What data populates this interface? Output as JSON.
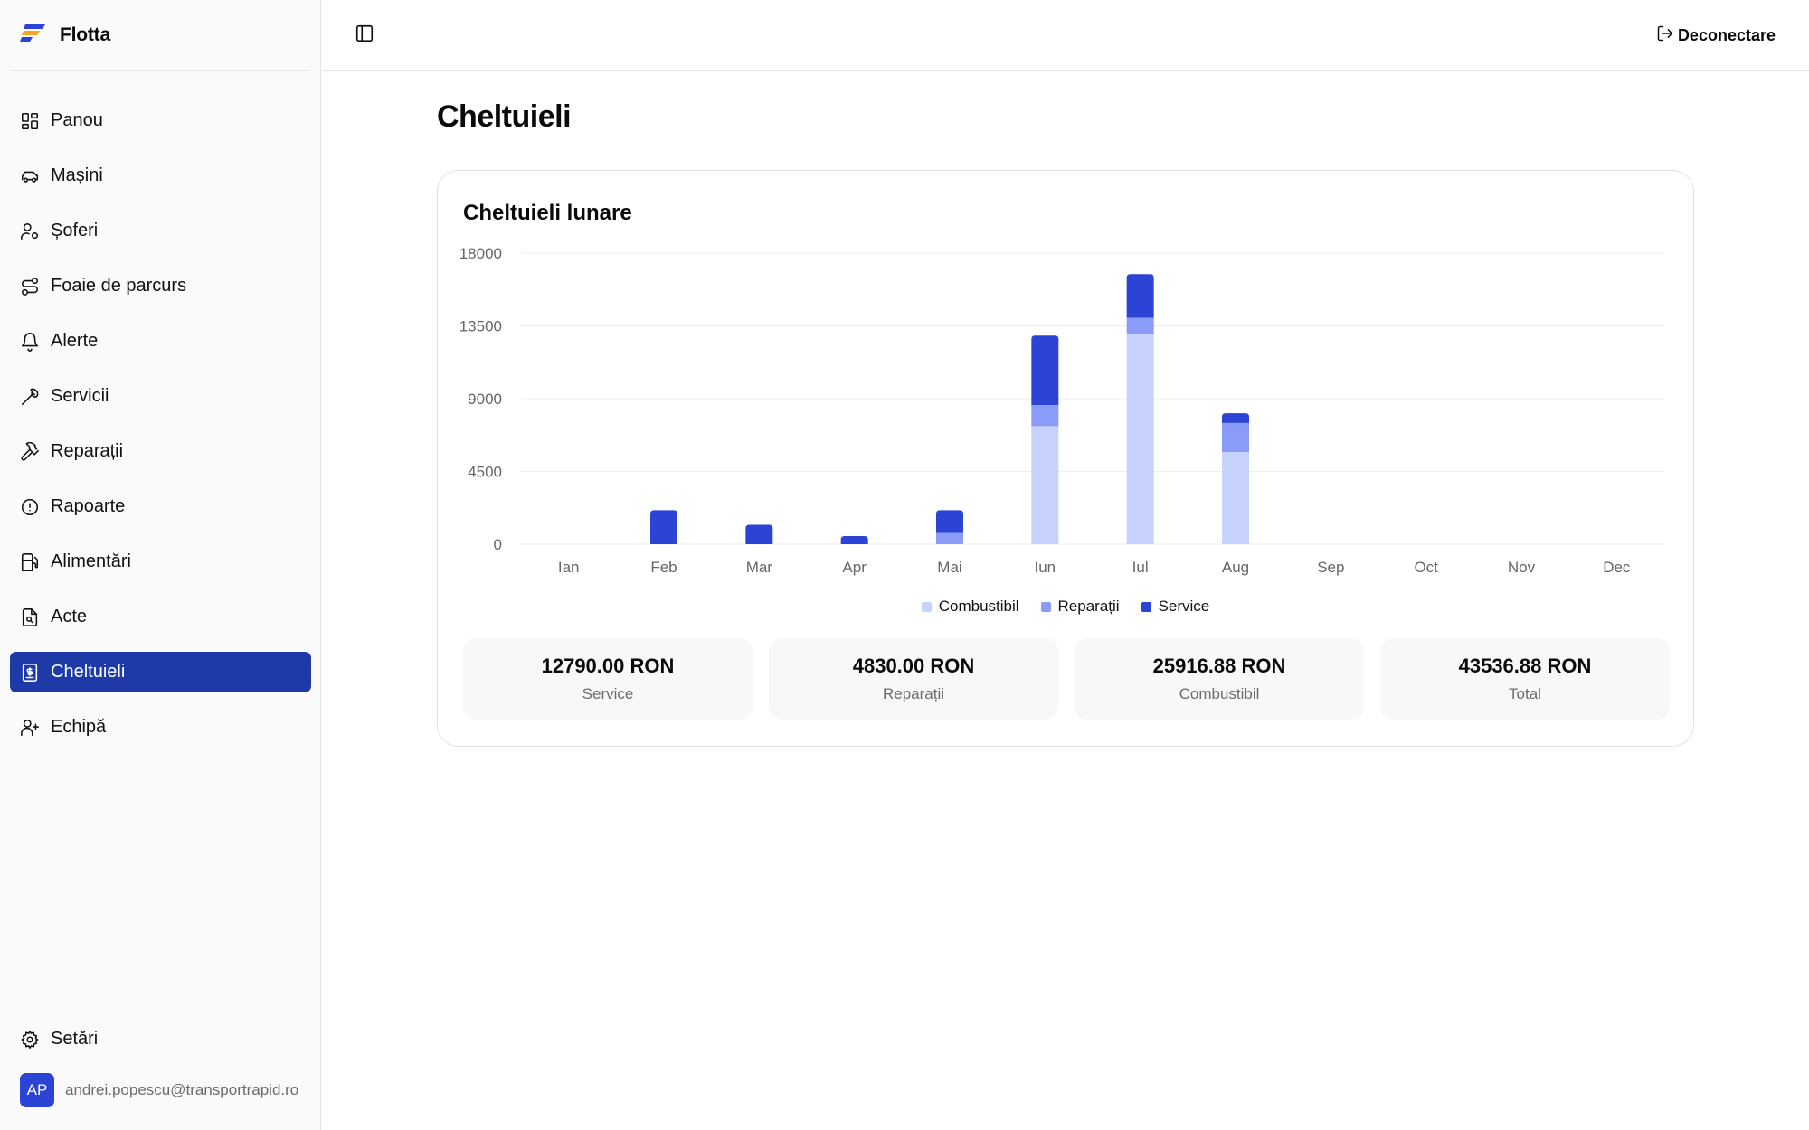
{
  "app": {
    "name": "Flotta"
  },
  "header": {
    "logout_label": "Deconectare"
  },
  "sidebar": {
    "items": [
      {
        "label": "Panou",
        "icon": "dashboard-icon",
        "active": false
      },
      {
        "label": "Mașini",
        "icon": "car-icon",
        "active": false
      },
      {
        "label": "Șoferi",
        "icon": "user-settings-icon",
        "active": false
      },
      {
        "label": "Foaie de parcurs",
        "icon": "route-icon",
        "active": false
      },
      {
        "label": "Alerte",
        "icon": "bell-icon",
        "active": false
      },
      {
        "label": "Servicii",
        "icon": "wrench-icon",
        "active": false
      },
      {
        "label": "Reparații",
        "icon": "hammer-icon",
        "active": false
      },
      {
        "label": "Rapoarte",
        "icon": "alert-circle-icon",
        "active": false
      },
      {
        "label": "Alimentări",
        "icon": "fuel-icon",
        "active": false
      },
      {
        "label": "Acte",
        "icon": "file-search-icon",
        "active": false
      },
      {
        "label": "Cheltuieli",
        "icon": "receipt-icon",
        "active": true
      },
      {
        "label": "Echipă",
        "icon": "user-plus-icon",
        "active": false
      }
    ],
    "settings_label": "Setări",
    "user": {
      "initials": "AP",
      "email": "andrei.popescu@transportrapid.ro"
    }
  },
  "main": {
    "title": "Cheltuieli",
    "card_title": "Cheltuieli lunare",
    "stats": [
      {
        "value": "12790.00 RON",
        "label": "Service"
      },
      {
        "value": "4830.00 RON",
        "label": "Reparații"
      },
      {
        "value": "25916.88 RON",
        "label": "Combustibil"
      },
      {
        "value": "43536.88 RON",
        "label": "Total"
      }
    ]
  },
  "colors": {
    "accent": "#1e3aa8",
    "combustibil": "#c7d2fe",
    "reparatii": "#8b9cf8",
    "service": "#2b44d6"
  },
  "chart_data": {
    "type": "bar",
    "stacked": true,
    "categories": [
      "Ian",
      "Feb",
      "Mar",
      "Apr",
      "Mai",
      "Iun",
      "Iul",
      "Aug",
      "Sep",
      "Oct",
      "Nov",
      "Dec"
    ],
    "y_tick_labels": [
      "0",
      "4500",
      "9000",
      "13500",
      "18000"
    ],
    "ylim": [
      0,
      18000
    ],
    "grid": true,
    "legend": "bottom-center",
    "series": [
      {
        "name": "Combustibil",
        "color": "#c7d2fe",
        "values": [
          0,
          0,
          0,
          0,
          0,
          7300,
          13000,
          5700,
          0,
          0,
          0,
          0
        ]
      },
      {
        "name": "Reparații",
        "color": "#8b9cf8",
        "values": [
          0,
          0,
          0,
          0,
          700,
          1300,
          1000,
          1800,
          0,
          0,
          0,
          0
        ]
      },
      {
        "name": "Service",
        "color": "#2b44d6",
        "values": [
          0,
          2100,
          1200,
          500,
          1400,
          4300,
          2700,
          600,
          0,
          0,
          0,
          0
        ]
      }
    ]
  }
}
